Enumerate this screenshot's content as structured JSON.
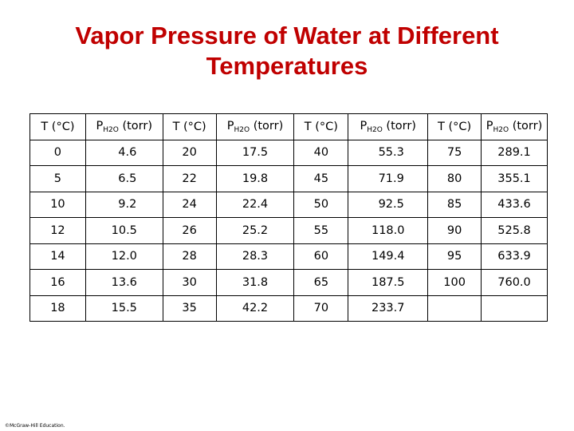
{
  "title": {
    "line1": "Vapor Pressure of Water at Different",
    "line2": "Temperatures"
  },
  "table": {
    "header": {
      "temp_label": "T (°C)",
      "pressure_prefix": "P",
      "pressure_subscript": "H2O",
      "pressure_unit": "(torr)"
    },
    "rows": [
      [
        "0",
        "4.6",
        "20",
        "17.5",
        "40",
        "55.3",
        "75",
        "289.1"
      ],
      [
        "5",
        "6.5",
        "22",
        "19.8",
        "45",
        "71.9",
        "80",
        "355.1"
      ],
      [
        "10",
        "9.2",
        "24",
        "22.4",
        "50",
        "92.5",
        "85",
        "433.6"
      ],
      [
        "12",
        "10.5",
        "26",
        "25.2",
        "55",
        "118.0",
        "90",
        "525.8"
      ],
      [
        "14",
        "12.0",
        "28",
        "28.3",
        "60",
        "149.4",
        "95",
        "633.9"
      ],
      [
        "16",
        "13.6",
        "30",
        "31.8",
        "65",
        "187.5",
        "100",
        "760.0"
      ],
      [
        "18",
        "15.5",
        "35",
        "42.2",
        "70",
        "233.7",
        "",
        ""
      ]
    ]
  },
  "footer": {
    "copyright": "©McGraw-Hill Education."
  },
  "colors": {
    "title": "#c00000",
    "border": "#000000"
  }
}
